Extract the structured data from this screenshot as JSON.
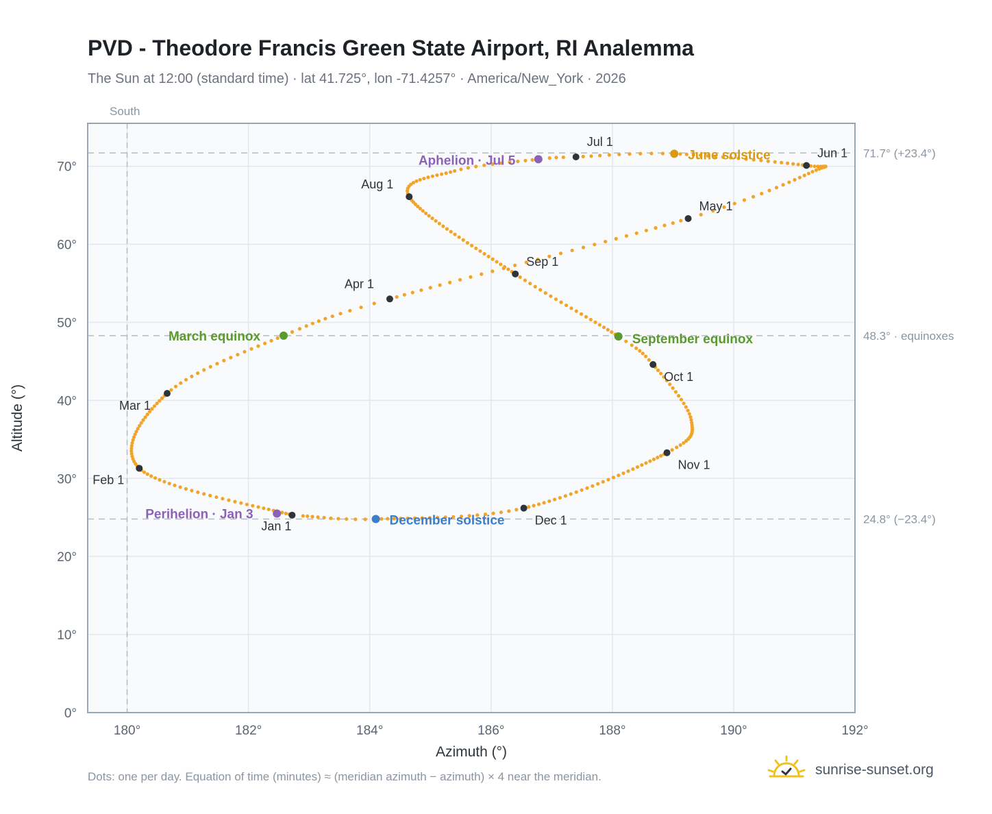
{
  "header": {
    "title": "PVD - Theodore Francis Green State Airport, RI Analemma",
    "subtitle": "The Sun at 12:00 (standard time) · lat 41.725°, lon -71.4257° · America/New_York · 2026"
  },
  "footer": {
    "note": "Dots: one per day. Equation of time (minutes) ≈ (meridian azimuth − azimuth) × 4 near the meridian.",
    "brand": "sunrise-sunset.org",
    "brand_icon": "sun-check-icon"
  },
  "colors": {
    "path": "#f2a428",
    "month": "#2f343b",
    "equinox": "#5b9a2c",
    "june_solstice": "#d99a12",
    "december_solstice": "#3c7fc8",
    "apsis": "#8c62b8",
    "ref_line": "#b3bcc7",
    "grid": "#e1e7ee",
    "plot_bg": "#f8fafc",
    "frame": "#9aa5b3",
    "axis_text": "#5b6470",
    "ref_text": "#8b95a1"
  },
  "chart_data": {
    "type": "scatter",
    "title": "PVD - Theodore Francis Green State Airport, RI Analemma",
    "xlabel": "Azimuth (°)",
    "ylabel": "Altitude (°)",
    "xlim": [
      179.35,
      192
    ],
    "ylim": [
      0,
      75.5
    ],
    "xticks": [
      180,
      182,
      184,
      186,
      188,
      190,
      192
    ],
    "xtick_labels": [
      "180°",
      "182°",
      "184°",
      "186°",
      "188°",
      "190°",
      "192°"
    ],
    "yticks": [
      0,
      10,
      20,
      30,
      40,
      50,
      60,
      70
    ],
    "ytick_labels": [
      "0°",
      "10°",
      "20°",
      "30°",
      "40°",
      "50°",
      "60°",
      "70°"
    ],
    "grid": true,
    "south_label": "South",
    "south_azimuth": 180,
    "reference_lines": [
      {
        "y": 71.7,
        "label": "71.7° (+23.4°)"
      },
      {
        "y": 48.3,
        "label": "48.3° · equinoxes"
      },
      {
        "y": 24.8,
        "label": "24.8° (−23.4°)"
      }
    ],
    "anchors": [
      {
        "day": 0,
        "label": "Jan 1",
        "az": 182.72,
        "alt": 25.3
      },
      {
        "day": 31,
        "label": "Feb 1",
        "az": 180.2,
        "alt": 31.3
      },
      {
        "day": 59,
        "label": "Mar 1",
        "az": 180.66,
        "alt": 40.9
      },
      {
        "day": 78,
        "label": "March equinox",
        "az": 182.58,
        "alt": 48.3
      },
      {
        "day": 90,
        "label": "Apr 1",
        "az": 184.33,
        "alt": 53.0
      },
      {
        "day": 120,
        "label": "May 1",
        "az": 189.25,
        "alt": 63.3
      },
      {
        "day": 136,
        "az": 191.3,
        "alt": 69.3
      },
      {
        "day": 151,
        "label": "Jun 1",
        "az": 191.2,
        "alt": 70.1
      },
      {
        "day": 171,
        "label": "June solstice",
        "az": 189.02,
        "alt": 71.6
      },
      {
        "day": 181,
        "label": "Jul 1",
        "az": 187.4,
        "alt": 71.2
      },
      {
        "day": 185,
        "label": "Aphelion · Jul 5",
        "az": 186.78,
        "alt": 70.9
      },
      {
        "day": 196,
        "az": 185.4,
        "alt": 69.4
      },
      {
        "day": 212,
        "label": "Aug 1",
        "az": 184.65,
        "alt": 66.1
      },
      {
        "day": 243,
        "label": "Sep 1",
        "az": 186.4,
        "alt": 56.2
      },
      {
        "day": 265,
        "label": "September equinox",
        "az": 188.1,
        "alt": 48.2
      },
      {
        "day": 273,
        "label": "Oct 1",
        "az": 188.67,
        "alt": 44.6
      },
      {
        "day": 289,
        "az": 189.3,
        "alt": 37.5
      },
      {
        "day": 304,
        "label": "Nov 1",
        "az": 188.9,
        "alt": 33.3
      },
      {
        "day": 334,
        "label": "Dec 1",
        "az": 186.54,
        "alt": 26.2
      },
      {
        "day": 354,
        "label": "December solstice",
        "az": 184.1,
        "alt": 24.8
      },
      {
        "day": 364,
        "az": 182.9,
        "alt": 25.2
      }
    ],
    "events": [
      {
        "label": "Jan 1",
        "az": 182.72,
        "alt": 25.3,
        "kind": "month"
      },
      {
        "label": "Feb 1",
        "az": 180.2,
        "alt": 31.3,
        "kind": "month"
      },
      {
        "label": "Mar 1",
        "az": 180.66,
        "alt": 40.9,
        "kind": "month"
      },
      {
        "label": "Apr 1",
        "az": 184.33,
        "alt": 53.0,
        "kind": "month"
      },
      {
        "label": "May 1",
        "az": 189.25,
        "alt": 63.3,
        "kind": "month"
      },
      {
        "label": "Jun 1",
        "az": 191.2,
        "alt": 70.1,
        "kind": "month"
      },
      {
        "label": "Jul 1",
        "az": 187.4,
        "alt": 71.2,
        "kind": "month"
      },
      {
        "label": "Aug 1",
        "az": 184.65,
        "alt": 66.1,
        "kind": "month"
      },
      {
        "label": "Sep 1",
        "az": 186.4,
        "alt": 56.2,
        "kind": "month"
      },
      {
        "label": "Oct 1",
        "az": 188.67,
        "alt": 44.6,
        "kind": "month"
      },
      {
        "label": "Nov 1",
        "az": 188.9,
        "alt": 33.3,
        "kind": "month"
      },
      {
        "label": "Dec 1",
        "az": 186.54,
        "alt": 26.2,
        "kind": "month"
      },
      {
        "label": "March equinox",
        "az": 182.58,
        "alt": 48.3,
        "kind": "equinox"
      },
      {
        "label": "September equinox",
        "az": 188.1,
        "alt": 48.2,
        "kind": "equinox"
      },
      {
        "label": "June solstice",
        "az": 189.02,
        "alt": 71.6,
        "kind": "june_solstice"
      },
      {
        "label": "December solstice",
        "az": 184.1,
        "alt": 24.8,
        "kind": "december_solstice"
      },
      {
        "label": "Perihelion · Jan 3",
        "az": 182.47,
        "alt": 25.5,
        "kind": "apsis"
      },
      {
        "label": "Aphelion · Jul 5",
        "az": 186.78,
        "alt": 70.9,
        "kind": "apsis"
      }
    ]
  }
}
